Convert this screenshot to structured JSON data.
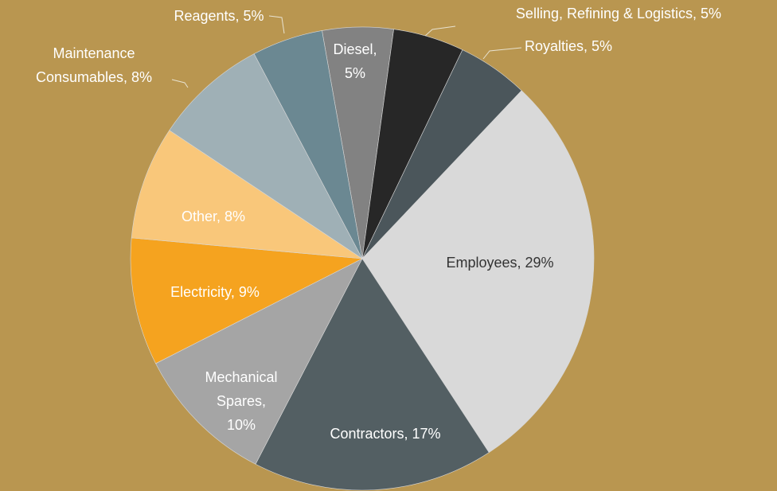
{
  "chart_data": {
    "type": "pie",
    "labels": [
      "Diesel, 5%",
      "Selling, Refining & Logistics, 5%",
      "Royalties, 5%",
      "Employees, 29%",
      "Contractors, 17%",
      "Mechanical Spares, 10%",
      "Electricity, 9%",
      "Other, 8%",
      "Maintenance Consumables, 8%",
      "Reagents, 5%"
    ],
    "values": [
      5,
      5,
      5,
      29,
      17,
      10,
      9,
      8,
      8,
      5
    ],
    "colors": [
      "#828282",
      "#272727",
      "#4b565b",
      "#d9d9d9",
      "#535f63",
      "#a5a5a5",
      "#f5a31f",
      "#f9c77a",
      "#9fb0b6",
      "#6b8892"
    ]
  }
}
